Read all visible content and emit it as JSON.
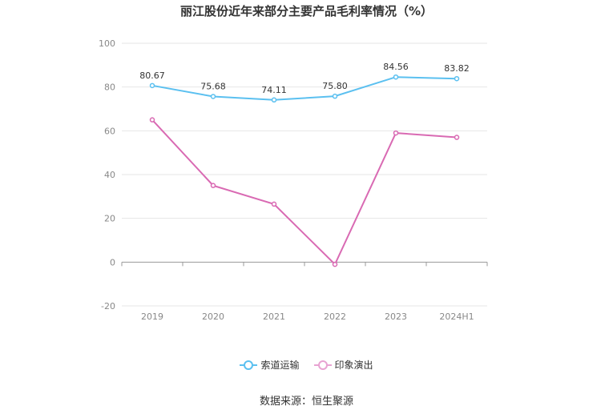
{
  "title": "丽江股份近年来部分主要产品毛利率情况（%）",
  "source": "数据来源：恒生聚源",
  "colors": {
    "series1": "#5bc0f0",
    "series2": "#d96ab3",
    "grid": "#e6e6e6",
    "axis": "#999999",
    "tick_text": "#888888",
    "label_text": "#333333"
  },
  "chart_data": {
    "type": "line",
    "title": "丽江股份近年来部分主要产品毛利率情况（%）",
    "categories": [
      "2019",
      "2020",
      "2021",
      "2022",
      "2023",
      "2024H1"
    ],
    "ylim": [
      -20,
      100
    ],
    "yticks": [
      -20,
      0,
      20,
      40,
      60,
      80,
      100
    ],
    "grid": true,
    "legend_position": "bottom-center",
    "series": [
      {
        "name": "索道运输",
        "values": [
          80.67,
          75.68,
          74.11,
          75.8,
          84.56,
          83.82
        ],
        "labels": [
          "80.67",
          "75.68",
          "74.11",
          "75.80",
          "84.56",
          "83.82"
        ],
        "show_labels": true
      },
      {
        "name": "印象演出",
        "values": [
          65,
          35,
          26.5,
          -1,
          59,
          57
        ],
        "show_labels": false
      }
    ]
  }
}
